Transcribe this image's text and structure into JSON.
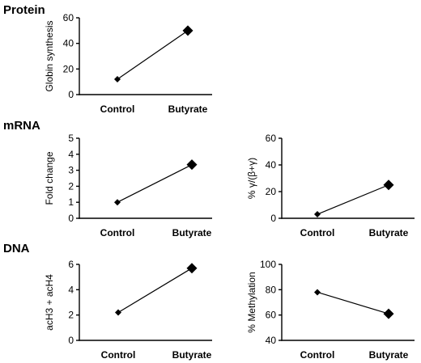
{
  "sections": {
    "protein": "Protein",
    "mrna": "mRNA",
    "dna": "DNA"
  },
  "chart_data": [
    {
      "type": "line",
      "section": "protein",
      "categories": [
        "Control",
        "Butyrate"
      ],
      "values": [
        12,
        50
      ],
      "ylabel": "Globin synthesis",
      "ylim": [
        0,
        60
      ],
      "yticks": [
        0,
        20,
        40,
        60
      ]
    },
    {
      "type": "line",
      "section": "mrna",
      "categories": [
        "Control",
        "Butyrate"
      ],
      "values": [
        1,
        3.35
      ],
      "ylabel": "Fold change",
      "ylim": [
        0,
        5
      ],
      "yticks": [
        0,
        1,
        2,
        3,
        4,
        5
      ]
    },
    {
      "type": "line",
      "section": "mrna",
      "categories": [
        "Control",
        "Butyrate"
      ],
      "values": [
        3,
        25
      ],
      "ylabel": "% γ/(β+γ)",
      "ylim": [
        0,
        60
      ],
      "yticks": [
        0,
        20,
        40,
        60
      ]
    },
    {
      "type": "line",
      "section": "dna",
      "categories": [
        "Control",
        "Butyrate"
      ],
      "values": [
        2.2,
        5.7
      ],
      "ylabel": "acH3 + acH4",
      "ylim": [
        0,
        6
      ],
      "yticks": [
        0,
        2,
        4,
        6
      ]
    },
    {
      "type": "line",
      "section": "dna",
      "categories": [
        "Control",
        "Butyrate"
      ],
      "values": [
        78,
        61
      ],
      "ylabel": "% Methylation",
      "ylim": [
        40,
        100
      ],
      "yticks": [
        40,
        60,
        80,
        100
      ]
    }
  ]
}
